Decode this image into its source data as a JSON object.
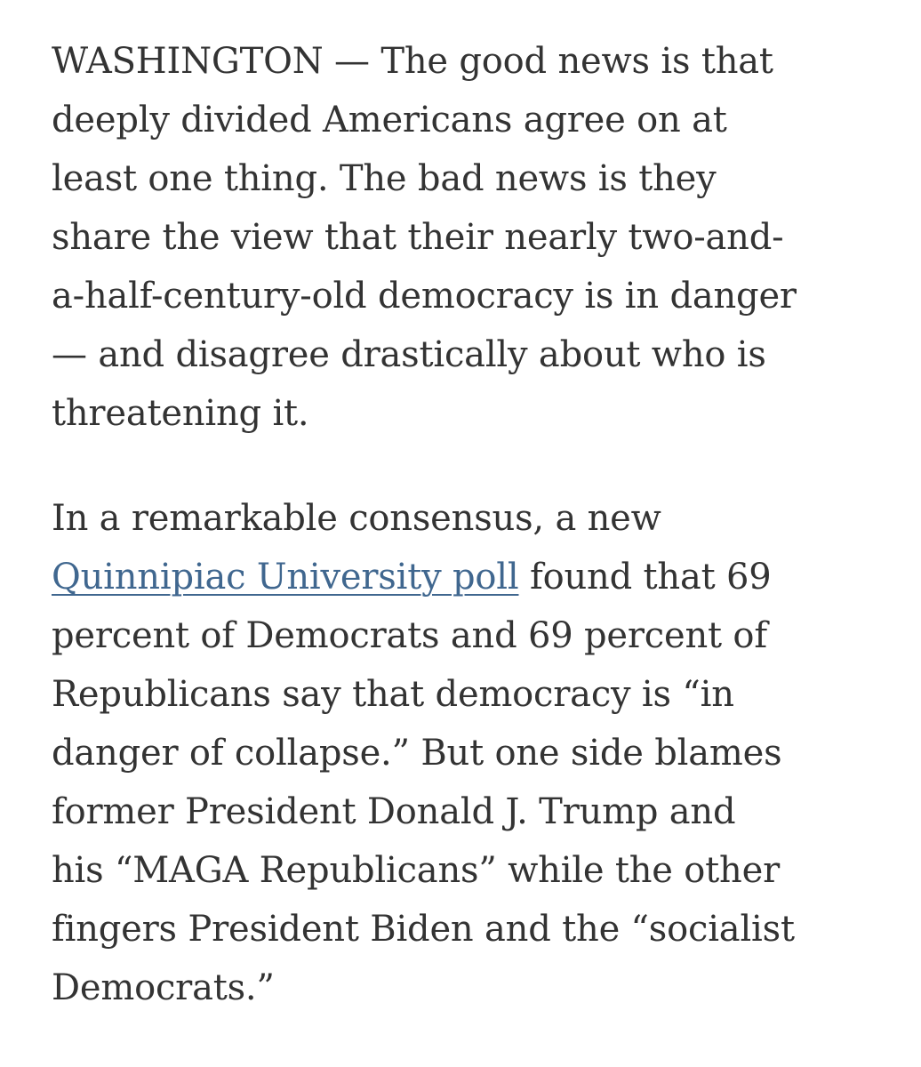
{
  "colors": {
    "background": "#ffffff",
    "body_text": "#333333",
    "link": "#40678f"
  },
  "article": {
    "link_label": "Quinnipiac University poll",
    "paragraphs": [
      {
        "lines": [
          [
            {
              "t": "WASHINGTON — The good news is that"
            }
          ],
          [
            {
              "t": "deeply divided Americans agree on at"
            }
          ],
          [
            {
              "t": "least one thing. The bad news is they"
            }
          ],
          [
            {
              "t": "share the view that their nearly two-and-"
            }
          ],
          [
            {
              "t": "a-half-century-old democracy is in danger"
            }
          ],
          [
            {
              "t": "— and disagree drastically about who is"
            }
          ],
          [
            {
              "t": "threatening it."
            }
          ]
        ]
      },
      {
        "lines": [
          [
            {
              "t": "In a remarkable consensus, a new"
            }
          ],
          [
            {
              "t": "Quinnipiac University poll",
              "link": true
            },
            {
              "t": " found that 69"
            }
          ],
          [
            {
              "t": "percent of Democrats and 69 percent of"
            }
          ],
          [
            {
              "t": "Republicans say that democracy is “in"
            }
          ],
          [
            {
              "t": "danger of collapse.” But one side blames"
            }
          ],
          [
            {
              "t": "former President Donald J. Trump and"
            }
          ],
          [
            {
              "t": "his “MAGA Republicans” while the other"
            }
          ],
          [
            {
              "t": "fingers President Biden and the “socialist"
            }
          ],
          [
            {
              "t": "Democrats.”"
            }
          ]
        ]
      }
    ]
  }
}
